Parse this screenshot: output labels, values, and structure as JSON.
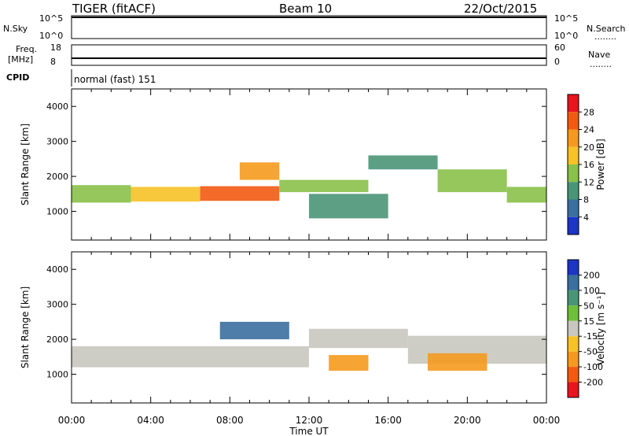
{
  "header": {
    "station": "TIGER (fitACF)",
    "beam": "Beam 10",
    "date": "22/Oct/2015"
  },
  "strips": {
    "nsky_label": "N.Sky",
    "nsearch_label": "N.Search",
    "nsky_ticks": [
      "10^5",
      "10^0"
    ],
    "freq_label_1": "Freq.",
    "freq_label_2": "[MHz]",
    "freq_ticks": [
      "18",
      "8"
    ],
    "nave_label": "Nave",
    "nave_ticks": [
      "60",
      "0"
    ],
    "cpid_label": "CPID",
    "cpid_text": "normal (fast) 151",
    "dotted_indicator": "........"
  },
  "chart_data": [
    {
      "type": "heatmap",
      "name": "power-panel",
      "ylabel": "Slant Range [km]",
      "xlabel": "Time UT",
      "xticks": [
        "00:00",
        "04:00",
        "08:00",
        "12:00",
        "16:00",
        "20:00",
        "00:00"
      ],
      "xlim_hours": [
        0,
        24
      ],
      "ylim_km": [
        180,
        4500
      ],
      "yticks": [
        1000,
        2000,
        3000,
        4000
      ],
      "colorbar": {
        "label": "Power [dB]",
        "ticks": [
          "28",
          "24",
          "20",
          "16",
          "12",
          "8",
          "4"
        ],
        "colors": [
          "#e8141e",
          "#f25a12",
          "#f59a1e",
          "#f6c226",
          "#89c14a",
          "#4a9577",
          "#3a6f9e",
          "#1c35c4"
        ]
      },
      "regions": [
        {
          "t0": 0.0,
          "t1": 3.0,
          "r0": 1250,
          "r1": 1750,
          "value": 14
        },
        {
          "t0": 3.0,
          "t1": 6.5,
          "r0": 1280,
          "r1": 1700,
          "value": 20
        },
        {
          "t0": 6.5,
          "t1": 10.5,
          "r0": 1300,
          "r1": 1720,
          "value": 26
        },
        {
          "t0": 10.5,
          "t1": 15.0,
          "r0": 1550,
          "r1": 1900,
          "value": 16
        },
        {
          "t0": 8.5,
          "t1": 10.5,
          "r0": 1900,
          "r1": 2400,
          "value": 24
        },
        {
          "t0": 15.0,
          "t1": 18.5,
          "r0": 2200,
          "r1": 2600,
          "value": 12
        },
        {
          "t0": 18.5,
          "t1": 22.0,
          "r0": 1550,
          "r1": 2200,
          "value": 14
        },
        {
          "t0": 22.0,
          "t1": 24.0,
          "r0": 1250,
          "r1": 1700,
          "value": 16
        },
        {
          "t0": 12.0,
          "t1": 16.0,
          "r0": 800,
          "r1": 1500,
          "value": 12
        }
      ]
    },
    {
      "type": "heatmap",
      "name": "velocity-panel",
      "ylabel": "Slant Range [km]",
      "xlabel": "Time UT",
      "xticks": [
        "00:00",
        "04:00",
        "08:00",
        "12:00",
        "16:00",
        "20:00",
        "00:00"
      ],
      "xlim_hours": [
        0,
        24
      ],
      "ylim_km": [
        180,
        4500
      ],
      "yticks": [
        1000,
        2000,
        3000,
        4000
      ],
      "colorbar": {
        "label": "Velocity [m s⁻¹]",
        "ticks": [
          "200",
          "100",
          "50",
          "15",
          "-15",
          "-50",
          "-100",
          "-200"
        ],
        "colors": [
          "#1c35c4",
          "#3a6f9e",
          "#4a9577",
          "#6fbf3a",
          "#c8c8c0",
          "#f6c226",
          "#f59a1e",
          "#f25a12",
          "#e8141e"
        ]
      },
      "regions": [
        {
          "t0": 0.0,
          "t1": 12.0,
          "r0": 1200,
          "r1": 1800,
          "value": 0
        },
        {
          "t0": 12.0,
          "t1": 17.0,
          "r0": 1750,
          "r1": 2300,
          "value": 0
        },
        {
          "t0": 17.0,
          "t1": 24.0,
          "r0": 1300,
          "r1": 2100,
          "value": 0
        },
        {
          "t0": 7.5,
          "t1": 11.0,
          "r0": 2000,
          "r1": 2500,
          "value": 150
        },
        {
          "t0": 13.0,
          "t1": 15.0,
          "r0": 1100,
          "r1": 1550,
          "value": -60
        },
        {
          "t0": 18.0,
          "t1": 21.0,
          "r0": 1100,
          "r1": 1600,
          "value": -80
        }
      ]
    }
  ]
}
